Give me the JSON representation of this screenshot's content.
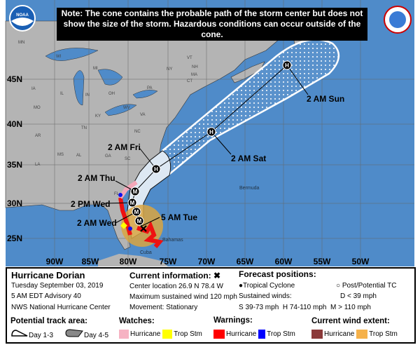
{
  "note": "Note: The cone contains the probable path of the storm center but does not show the size of the storm. Hazardous conditions can occur outside of the cone.",
  "logos": {
    "left": "NOAA",
    "right": "NATIONAL WEATHER SERVICE"
  },
  "map": {
    "lat_labels": [
      "45N",
      "40N",
      "35N",
      "30N",
      "25N"
    ],
    "lon_labels": [
      "90W",
      "85W",
      "80W",
      "75W",
      "70W",
      "65W",
      "60W",
      "55W",
      "50W"
    ],
    "state_labels": [
      "MN",
      "WI",
      "MI",
      "IA",
      "IL",
      "IN",
      "OH",
      "PA",
      "NY",
      "VT",
      "NH",
      "MA",
      "CT",
      "MO",
      "KY",
      "WV",
      "VA",
      "TN",
      "NC",
      "AR",
      "SC",
      "MS",
      "AL",
      "GA",
      "LA",
      "FL"
    ],
    "place_labels": {
      "bermuda": "Bermuda",
      "bahamas": "Bahamas",
      "cuba": "Cuba"
    },
    "forecast_labels": [
      "5 AM Tue",
      "2 AM Wed",
      "2 PM Wed",
      "2 AM Thu",
      "2 AM Fri",
      "2 AM Sat",
      "2 AM Sun"
    ],
    "forecast_points": [
      "M",
      "M",
      "M",
      "M",
      "H",
      "H",
      "H"
    ],
    "colors": {
      "ocean": "#4f8bc9",
      "land": "#b4b4b4",
      "cone": "#dde8f3",
      "hurricane_warning": "#ee1111",
      "ts_warning": "#1111ee",
      "hurricane_watch": "#f4a7b9",
      "ts_wind": "#d9a441"
    }
  },
  "storm": {
    "name": "Hurricane Dorian",
    "date": "Tuesday September 03, 2019",
    "advisory": "5 AM EDT Advisory 40",
    "agency": "NWS National Hurricane Center"
  },
  "current": {
    "title": "Current information: ✖",
    "center": "Center location 26.9 N 78.4 W",
    "wind": "Maximum sustained wind 120 mph",
    "movement": "Movement: Stationary"
  },
  "forecast": {
    "title": "Forecast positions:",
    "tc": "Tropical Cyclone",
    "post": "Post/Potential TC",
    "sustained": "Sustained winds:",
    "d": "D < 39 mph",
    "shm": "S 39-73 mph  H 74-110 mph  M > 110 mph"
  },
  "legend": {
    "track": "Potential track area:",
    "day13": "Day 1-3",
    "day45": "Day 4-5",
    "watches": "Watches:",
    "warnings": "Warnings:",
    "wind": "Current wind extent:",
    "hurricane": "Hurricane",
    "tropstm": "Trop Stm",
    "colors": {
      "watch_hu": "#f6b3c3",
      "watch_ts": "#ffff00",
      "warn_hu": "#ff0000",
      "warn_ts": "#0000ff",
      "wind_hu": "#8b3a3a",
      "wind_ts": "#f5b14a"
    }
  }
}
